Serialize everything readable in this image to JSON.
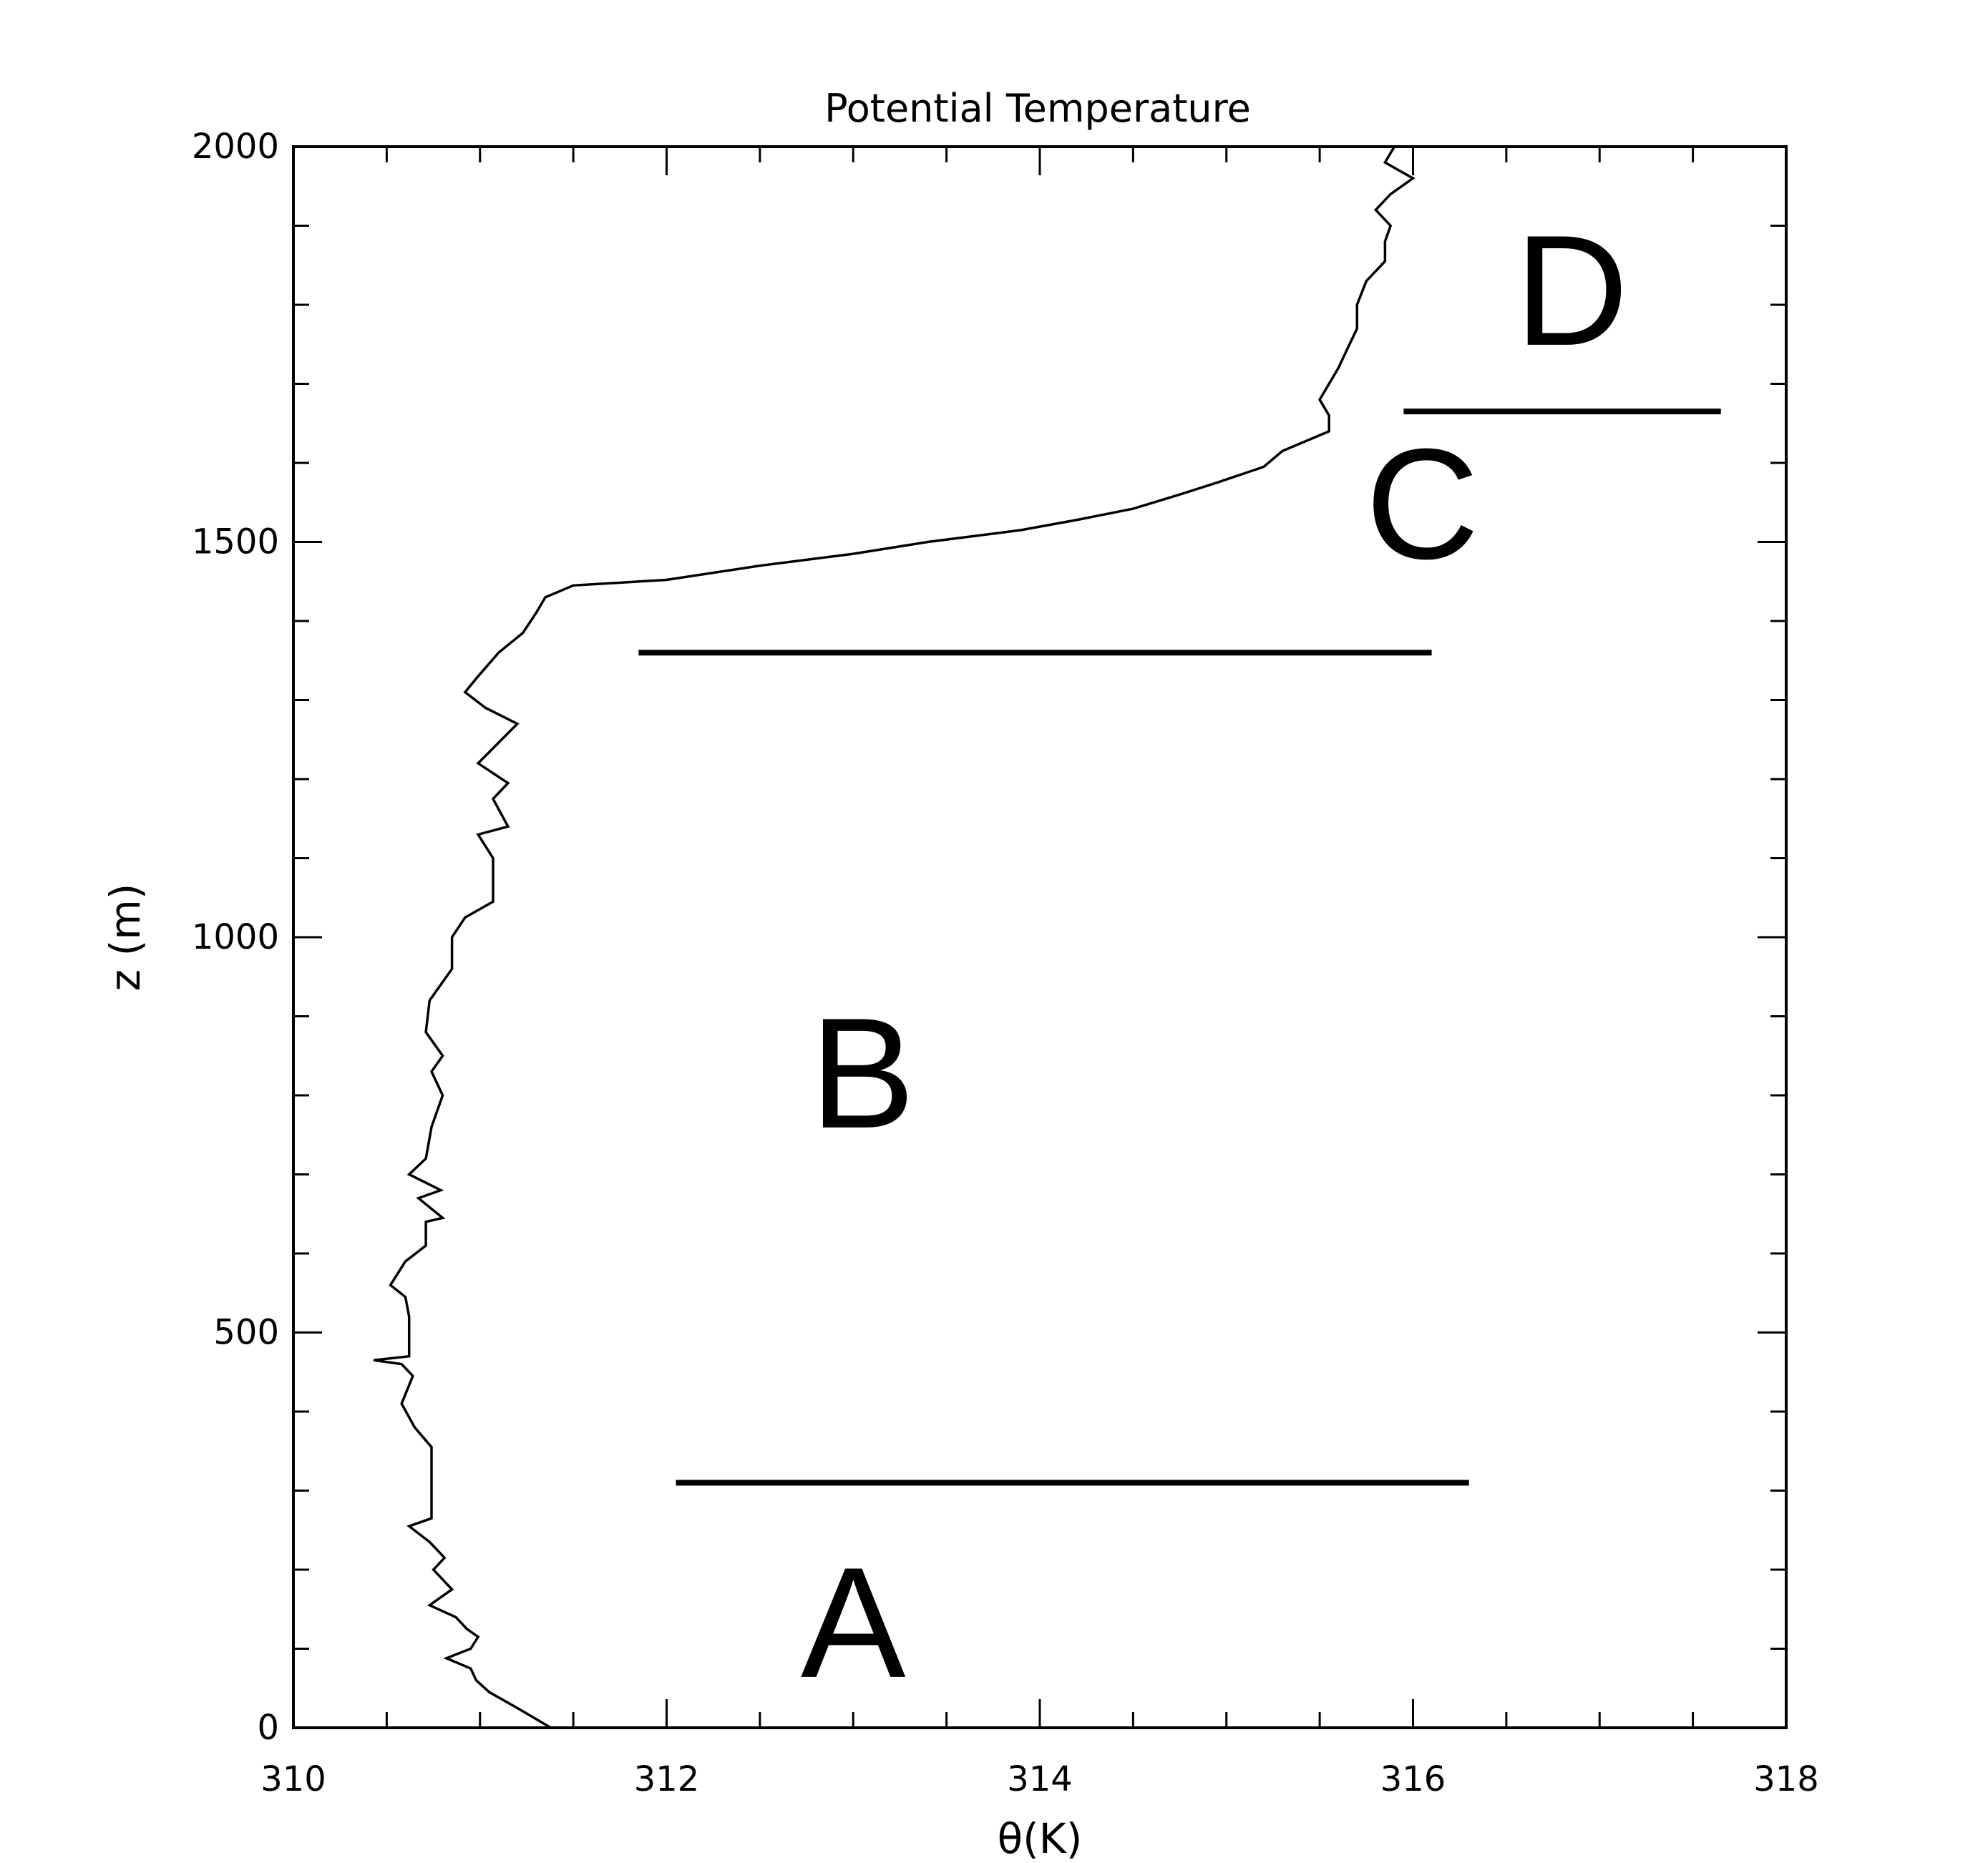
{
  "chart_data": {
    "type": "line",
    "title": "Potential Temperature",
    "xlabel": "θ(K)",
    "ylabel": "z (m)",
    "xlim": [
      310,
      318
    ],
    "ylim": [
      0,
      2000
    ],
    "x_ticks": [
      310,
      312,
      314,
      316,
      318
    ],
    "x_tick_labels": [
      "310",
      "312",
      "314",
      "316",
      "318"
    ],
    "y_ticks": [
      0,
      500,
      1000,
      1500,
      2000
    ],
    "y_tick_labels": [
      "0",
      "500",
      "1000",
      "1500",
      "2000"
    ],
    "x_minor_step": 0.5,
    "y_minor_step": 100,
    "grid": false,
    "series": [
      {
        "points": [
          [
            311.38,
            0
          ],
          [
            311.2,
            25
          ],
          [
            311.05,
            45
          ],
          [
            310.98,
            60
          ],
          [
            310.95,
            75
          ],
          [
            310.82,
            88
          ],
          [
            310.95,
            100
          ],
          [
            310.99,
            115
          ],
          [
            310.93,
            125
          ],
          [
            310.87,
            140
          ],
          [
            310.73,
            155
          ],
          [
            310.85,
            175
          ],
          [
            310.75,
            200
          ],
          [
            310.81,
            215
          ],
          [
            310.73,
            235
          ],
          [
            310.62,
            255
          ],
          [
            310.74,
            265
          ],
          [
            310.74,
            300
          ],
          [
            310.74,
            355
          ],
          [
            310.65,
            380
          ],
          [
            310.58,
            410
          ],
          [
            310.64,
            445
          ],
          [
            310.58,
            460
          ],
          [
            310.43,
            465
          ],
          [
            310.62,
            470
          ],
          [
            310.62,
            520
          ],
          [
            310.6,
            545
          ],
          [
            310.52,
            560
          ],
          [
            310.6,
            590
          ],
          [
            310.71,
            610
          ],
          [
            310.71,
            640
          ],
          [
            310.8,
            645
          ],
          [
            310.67,
            670
          ],
          [
            310.79,
            680
          ],
          [
            310.62,
            700
          ],
          [
            310.71,
            720
          ],
          [
            310.74,
            760
          ],
          [
            310.8,
            800
          ],
          [
            310.74,
            830
          ],
          [
            310.8,
            850
          ],
          [
            310.71,
            880
          ],
          [
            310.73,
            920
          ],
          [
            310.85,
            960
          ],
          [
            310.85,
            1000
          ],
          [
            310.92,
            1025
          ],
          [
            311.07,
            1045
          ],
          [
            311.07,
            1100
          ],
          [
            310.99,
            1130
          ],
          [
            311.15,
            1140
          ],
          [
            311.07,
            1175
          ],
          [
            311.15,
            1195
          ],
          [
            310.99,
            1220
          ],
          [
            311.2,
            1270
          ],
          [
            311.03,
            1290
          ],
          [
            310.92,
            1310
          ],
          [
            310.99,
            1330
          ],
          [
            311.1,
            1360
          ],
          [
            311.23,
            1385
          ],
          [
            311.3,
            1410
          ],
          [
            311.35,
            1430
          ],
          [
            311.5,
            1445
          ],
          [
            312.0,
            1452
          ],
          [
            312.5,
            1470
          ],
          [
            313.0,
            1485
          ],
          [
            313.4,
            1500
          ],
          [
            313.9,
            1515
          ],
          [
            314.2,
            1528
          ],
          [
            314.5,
            1542
          ],
          [
            314.75,
            1560
          ],
          [
            314.95,
            1575
          ],
          [
            315.2,
            1595
          ],
          [
            315.3,
            1615
          ],
          [
            315.45,
            1630
          ],
          [
            315.55,
            1640
          ],
          [
            315.55,
            1660
          ],
          [
            315.5,
            1680
          ],
          [
            315.55,
            1700
          ],
          [
            315.6,
            1720
          ],
          [
            315.65,
            1745
          ],
          [
            315.7,
            1770
          ],
          [
            315.7,
            1800
          ],
          [
            315.75,
            1830
          ],
          [
            315.85,
            1855
          ],
          [
            315.85,
            1880
          ],
          [
            315.88,
            1900
          ],
          [
            315.8,
            1920
          ],
          [
            315.88,
            1940
          ],
          [
            316.0,
            1960
          ],
          [
            315.85,
            1980
          ],
          [
            315.9,
            2000
          ]
        ]
      }
    ],
    "separators": [
      {
        "x_start": 312.05,
        "x_end": 316.3,
        "y": 310
      },
      {
        "x_start": 311.85,
        "x_end": 316.1,
        "y": 1360
      },
      {
        "x_start": 315.95,
        "x_end": 317.65,
        "y": 1665
      }
    ],
    "region_labels": [
      {
        "text": "A",
        "x": 313.0,
        "y": 135
      },
      {
        "text": "B",
        "x": 313.05,
        "y": 830
      },
      {
        "text": "C",
        "x": 316.05,
        "y": 1550
      },
      {
        "text": "D",
        "x": 316.85,
        "y": 1820
      }
    ]
  }
}
